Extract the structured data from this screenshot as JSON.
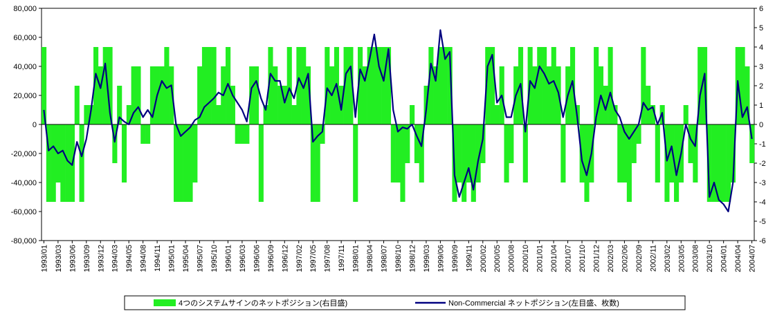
{
  "chart_data": {
    "type": "bar-line",
    "categories": [
      "1993/01",
      null,
      null,
      "1993/03",
      null,
      null,
      "1993/06",
      null,
      null,
      "1993/09",
      null,
      null,
      "1993/12",
      null,
      null,
      "1994/03",
      null,
      null,
      "1994/05",
      null,
      null,
      "1994/08",
      null,
      null,
      "1994/11",
      null,
      null,
      "1995/01",
      null,
      null,
      "1995/04",
      null,
      null,
      "1995/07",
      null,
      null,
      "1995/10",
      null,
      null,
      "1996/01",
      null,
      null,
      "1996/03",
      null,
      null,
      "1996/06",
      null,
      null,
      "1996/09",
      null,
      null,
      "1996/12",
      null,
      null,
      "1997/02",
      null,
      null,
      "1997/05",
      null,
      null,
      "1997/08",
      null,
      null,
      "1997/11",
      null,
      null,
      "1998/01",
      null,
      null,
      "1998/04",
      null,
      null,
      "1998/07",
      null,
      null,
      "1998/10",
      null,
      null,
      "1998/12",
      null,
      null,
      "1999/03",
      null,
      null,
      "1999/06",
      null,
      null,
      "1999/09",
      null,
      null,
      "1999/11",
      null,
      null,
      "2000/02",
      null,
      null,
      "2000/05",
      null,
      null,
      "2000/08",
      null,
      null,
      "2000/10",
      null,
      null,
      "2001/01",
      null,
      null,
      "2001/04",
      null,
      null,
      "2001/07",
      null,
      null,
      "2001/10",
      null,
      null,
      "2001/12",
      null,
      null,
      "2002/03",
      null,
      null,
      "2002/06",
      null,
      null,
      "2002/09",
      null,
      null,
      "2002/11",
      null,
      null,
      "2003/02",
      null,
      null,
      "2003/05",
      null,
      null,
      "2003/08",
      null,
      null,
      "2003/10",
      null,
      null,
      "2004/01",
      null,
      null,
      "2004/04",
      null,
      null,
      "2004/07"
    ],
    "series": [
      {
        "name": "4つのシステムサインのネットポジション(右目盛)",
        "color": "#22ee22",
        "kind": "bar",
        "axis": "y2",
        "values": [
          4,
          -4,
          -4,
          -3,
          -4,
          -4,
          -4,
          2,
          -4,
          1,
          1,
          4,
          3,
          4,
          4,
          -2,
          2,
          -3,
          1,
          3,
          3,
          -1,
          -1,
          3,
          3,
          3,
          4,
          3,
          -4,
          -4,
          -4,
          -4,
          -3,
          3,
          4,
          4,
          4,
          1,
          3,
          4,
          2,
          -1,
          -1,
          -1,
          3,
          3,
          -4,
          1,
          4,
          3,
          2,
          2,
          4,
          1,
          4,
          4,
          3,
          -4,
          -4,
          -1,
          4,
          3,
          4,
          2,
          4,
          4,
          -4,
          4,
          3,
          4,
          4,
          4,
          4,
          4,
          -3,
          -3,
          -4,
          -2,
          1,
          -2,
          -3,
          2,
          4,
          3,
          4,
          4,
          4,
          -4,
          -3,
          -4,
          -3,
          -4,
          -3,
          -2,
          4,
          4,
          1,
          3,
          -3,
          -2,
          3,
          4,
          -3,
          4,
          3,
          4,
          4,
          3,
          4,
          3,
          -3,
          3,
          4,
          1,
          -3,
          -4,
          -3,
          4,
          3,
          2,
          4,
          1,
          -3,
          -3,
          -4,
          -2,
          -1,
          4,
          2,
          1,
          -3,
          1,
          -4,
          -3,
          -4,
          -3,
          1,
          -2,
          -3,
          4,
          4,
          -4,
          -4,
          -4,
          -4,
          -4,
          -3,
          4,
          4,
          3,
          -2
        ]
      },
      {
        "name": "Non-Commercial ネットポジション(左目盛、枚数)",
        "color": "#000080",
        "kind": "line",
        "values": [
          10000,
          -18000,
          -15000,
          -20000,
          -18000,
          -25000,
          -28000,
          -12000,
          -22000,
          -10000,
          10000,
          35000,
          25000,
          42000,
          8000,
          -12000,
          5000,
          2000,
          0,
          8000,
          12000,
          5000,
          10000,
          5000,
          20000,
          30000,
          25000,
          27000,
          0,
          -8000,
          -5000,
          -2000,
          3000,
          5000,
          12000,
          15000,
          18000,
          22000,
          20000,
          28000,
          20000,
          15000,
          10000,
          2000,
          25000,
          30000,
          18000,
          10000,
          35000,
          30000,
          30000,
          15000,
          25000,
          18000,
          32000,
          25000,
          35000,
          -12000,
          -8000,
          -5000,
          25000,
          20000,
          28000,
          10000,
          35000,
          40000,
          5000,
          38000,
          30000,
          45000,
          62000,
          40000,
          30000,
          52000,
          10000,
          -5000,
          -2000,
          -3000,
          0,
          -8000,
          -15000,
          10000,
          42000,
          30000,
          65000,
          45000,
          50000,
          -35000,
          -50000,
          -40000,
          -30000,
          -45000,
          -25000,
          -10000,
          40000,
          48000,
          15000,
          20000,
          5000,
          5000,
          20000,
          28000,
          -5000,
          30000,
          25000,
          40000,
          35000,
          28000,
          30000,
          22000,
          5000,
          20000,
          30000,
          5000,
          -25000,
          -35000,
          -20000,
          5000,
          20000,
          10000,
          22000,
          10000,
          5000,
          -5000,
          -10000,
          -5000,
          0,
          15000,
          10000,
          12000,
          0,
          8000,
          -25000,
          -15000,
          -35000,
          -20000,
          0,
          -10000,
          -15000,
          20000,
          35000,
          -50000,
          -40000,
          -52000,
          -55000,
          -60000,
          -40000,
          30000,
          5000,
          12000,
          -10000
        ]
      }
    ],
    "ylim": [
      -80000,
      80000
    ],
    "yticks": [
      {
        "value": 80000,
        "label": "80,000"
      },
      {
        "value": 60000,
        "label": "60,000"
      },
      {
        "value": 40000,
        "label": "40,000"
      },
      {
        "value": 20000,
        "label": "20,000"
      },
      0,
      {
        "value": -20000,
        "label": "-20,000"
      },
      {
        "value": -40000,
        "label": "-40,000"
      },
      {
        "value": -60000,
        "label": "-60,000"
      },
      {
        "value": -80000,
        "label": "-80,000"
      }
    ],
    "y2lim": [
      -6,
      6
    ],
    "y2ticks": [
      6,
      5,
      4,
      3,
      2,
      1,
      0,
      -1,
      -2,
      -3,
      -4,
      -5,
      -6
    ]
  }
}
